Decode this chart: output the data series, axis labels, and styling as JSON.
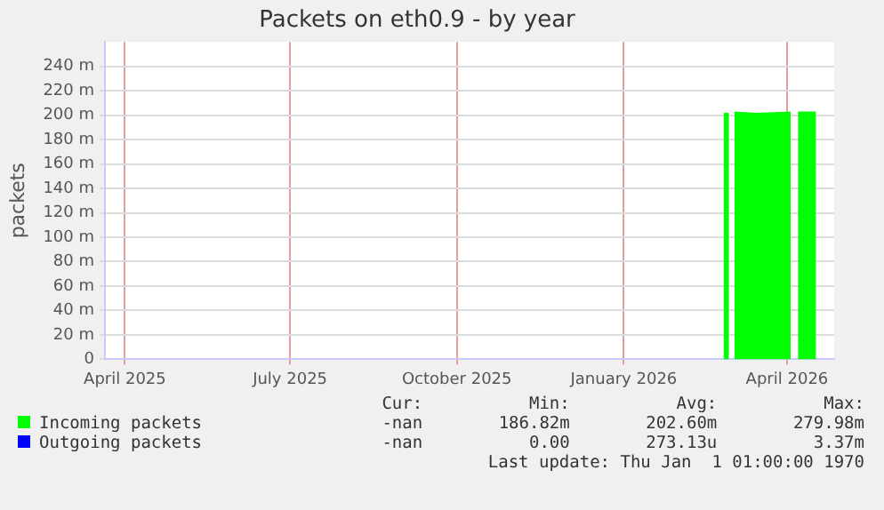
{
  "chart_data": {
    "type": "area",
    "title": "Packets on eth0.9 - by year",
    "ylabel": "packets",
    "x": [
      "2026-02-25",
      "2026-02-28",
      "2026-03-01",
      "2026-03-03",
      "2026-03-15",
      "2026-04-03",
      "2026-04-05",
      "2026-04-07",
      "2026-04-17"
    ],
    "series": [
      {
        "name": "Incoming packets",
        "color": "#00ff00",
        "values": [
          202,
          202,
          null,
          203,
          202,
          203,
          null,
          203,
          203
        ]
      },
      {
        "name": "Outgoing packets",
        "color": "#0000ff",
        "values": [
          null,
          null,
          null,
          null,
          null,
          null,
          null,
          null,
          null
        ]
      }
    ],
    "xlim": [
      "2025-03-21",
      "2026-04-27"
    ],
    "xticks": [
      {
        "value": "2025-04-01",
        "label": "April 2025"
      },
      {
        "value": "2025-07-01",
        "label": "July 2025"
      },
      {
        "value": "2025-10-01",
        "label": "October 2025"
      },
      {
        "value": "2026-01-01",
        "label": "January 2026"
      },
      {
        "value": "2026-04-01",
        "label": "April 2026"
      }
    ],
    "ylim": [
      0,
      260
    ],
    "yticks": [
      0,
      {
        "value": 20,
        "label": "20 m"
      },
      {
        "value": 40,
        "label": "40 m"
      },
      {
        "value": 60,
        "label": "60 m"
      },
      {
        "value": 80,
        "label": "80 m"
      },
      {
        "value": 100,
        "label": "100 m"
      },
      {
        "value": 120,
        "label": "120 m"
      },
      {
        "value": 140,
        "label": "140 m"
      },
      {
        "value": 160,
        "label": "160 m"
      },
      {
        "value": 180,
        "label": "180 m"
      },
      {
        "value": 200,
        "label": "200 m"
      },
      {
        "value": 220,
        "label": "220 m"
      },
      {
        "value": 240,
        "label": "240 m"
      }
    ],
    "grid": true,
    "legend": "bottom",
    "annotations": [
      "Cur:",
      "Min:",
      "Avg:",
      "Max:",
      "-nan",
      "186.82m",
      "202.60m",
      "279.98m",
      "-nan",
      "0.00",
      "273.13u",
      "3.37m",
      "Last update: Thu Jan  1 01:00:00 1970"
    ]
  }
}
